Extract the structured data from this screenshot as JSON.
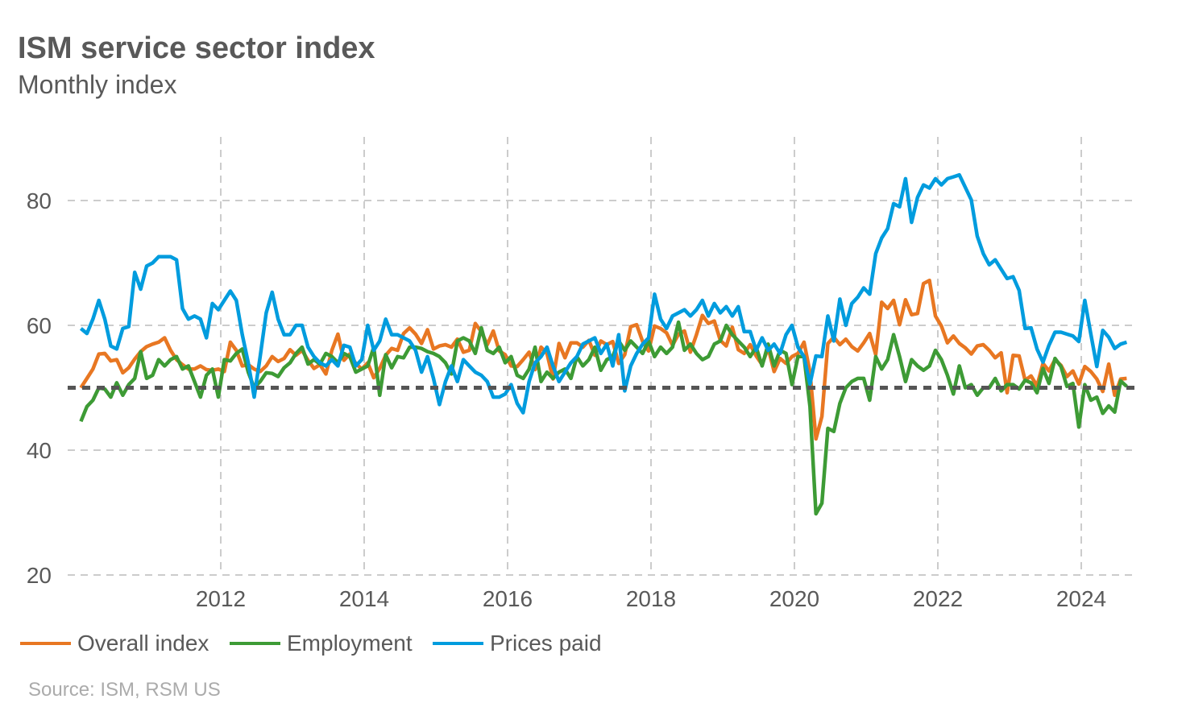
{
  "title": "ISM service sector index",
  "subtitle": "Monthly index",
  "source": "Source: ISM, RSM US",
  "chart_data": {
    "type": "line",
    "x_start": "2010-01",
    "frequency": "monthly",
    "xticks": [
      "2012",
      "2014",
      "2016",
      "2018",
      "2020",
      "2022",
      "2024"
    ],
    "yticks": [
      20,
      40,
      60,
      80
    ],
    "ylim": [
      20,
      90
    ],
    "grid": "dashed, both axes",
    "legend_placement": "bottom-left",
    "reference_line": {
      "value": 50,
      "color": "#555555",
      "style": "dotted"
    },
    "series": [
      {
        "name": "Overall index",
        "color": "#E87722",
        "values": [
          50,
          51.5,
          53,
          55.4,
          55.5,
          54.3,
          54.5,
          52.4,
          53.2,
          54.6,
          55.8,
          56.6,
          57,
          57.3,
          58,
          56,
          54.5,
          53.7,
          53,
          53,
          53.5,
          52.9,
          52.8,
          53,
          52.6,
          57.3,
          56,
          53.5,
          53.7,
          53,
          52.6,
          53.5,
          55,
          54.2,
          54.7,
          56.1,
          55.2,
          56,
          54.4,
          53.1,
          53.7,
          52.2,
          56,
          58.6,
          54.4,
          55.4,
          53.9,
          53,
          54,
          51.6,
          53.1,
          55.2,
          56.3,
          56,
          58.7,
          59.6,
          58.6,
          57.1,
          59.3,
          56.2,
          56.7,
          56.9,
          56.5,
          57.8,
          55.7,
          56,
          60.3,
          59,
          56.9,
          59.1,
          55.9,
          55.3,
          53.5,
          53.4,
          54.5,
          55.7,
          52.9,
          56.5,
          55.5,
          51.4,
          57.1,
          54.8,
          57.2,
          57.2,
          56.5,
          57.6,
          55.2,
          57.5,
          56.9,
          57.4,
          53.9,
          55.3,
          59.8,
          60.1,
          57.4,
          55.9,
          59.9,
          59.5,
          58.8,
          56.8,
          58.6,
          59.1,
          55.7,
          58.5,
          61.6,
          60.3,
          60.7,
          57.6,
          56.7,
          59.7,
          56.1,
          55.5,
          56.9,
          55.1,
          53.7,
          56.4,
          52.6,
          54.7,
          53.9,
          55,
          55.5,
          57.3,
          52.5,
          41.8,
          45.4,
          57.1,
          58.1,
          56.9,
          57.8,
          56.6,
          55.9,
          57.2,
          58.7,
          55.3,
          63.7,
          62.7,
          64,
          60.1,
          64.1,
          61.7,
          61.9,
          66.7,
          67.2,
          61.5,
          59.9,
          57.2,
          58.3,
          57.1,
          56.4,
          55.4,
          56.7,
          56.9,
          56,
          54.8,
          55.6,
          49.2,
          55.2,
          55.1,
          51.2,
          51.9,
          50.3,
          53.9,
          52.7,
          54.5,
          53.6,
          51.8,
          52.7,
          50.6,
          53.4,
          52.6,
          51.4,
          49.4,
          53.8,
          48.8,
          51.4,
          51.5
        ]
      },
      {
        "name": "Employment",
        "color": "#3D9B35",
        "values": [
          44.6,
          47,
          48,
          50,
          49.8,
          48.5,
          50.8,
          48.8,
          50.5,
          51.5,
          55.8,
          51.5,
          52,
          54.5,
          53.5,
          54.5,
          55,
          53,
          53.5,
          51,
          48.5,
          52,
          53,
          48.5,
          54.5,
          54.3,
          55.5,
          56.2,
          52.5,
          50,
          51,
          52.4,
          52.3,
          51.8,
          53.2,
          54,
          55.5,
          56.5,
          53.8,
          54.5,
          53.8,
          55.5,
          55,
          54,
          55.5,
          55,
          52.5,
          53,
          53.5,
          56.5,
          48.8,
          55.3,
          53.2,
          55,
          54.8,
          56.5,
          56.5,
          56.3,
          55.8,
          55.5,
          55,
          54,
          52.2,
          57.5,
          58,
          57.5,
          55.5,
          59.6,
          56,
          55.5,
          56.5,
          54,
          55,
          52,
          51.5,
          53,
          56.5,
          51,
          52.5,
          51.5,
          52.5,
          53,
          51.5,
          55,
          53.5,
          54.5,
          56.5,
          52.8,
          54.5,
          55,
          57.5,
          56,
          57.5,
          56.5,
          55.5,
          57.5,
          55,
          56.5,
          55.5,
          56.5,
          60.5,
          56,
          57,
          55.5,
          54.5,
          55,
          57,
          57.5,
          60,
          58.5,
          57.5,
          56.5,
          55,
          56.5,
          53.5,
          57,
          53.5,
          56,
          55.5,
          50.5,
          55,
          55,
          47,
          29.8,
          31.5,
          43.5,
          43,
          47.5,
          50,
          51,
          51.5,
          51.5,
          48,
          55,
          53,
          54.5,
          58.5,
          55,
          51,
          54.5,
          53.5,
          52.8,
          53.5,
          56,
          54.5,
          52,
          49,
          53.5,
          50,
          50.5,
          48.8,
          50,
          50,
          51.5,
          49.5,
          50.5,
          50.5,
          49.8,
          51.2,
          50.8,
          49.2,
          53.1,
          50.7,
          54.7,
          53.4,
          50.2,
          50.7,
          43.7,
          50.5,
          48,
          48.5,
          45.9,
          47.1,
          46.1,
          51.1,
          50.2
        ]
      },
      {
        "name": "Prices paid",
        "color": "#009CDE",
        "values": [
          59.5,
          58.7,
          61,
          64,
          61,
          56.7,
          56.2,
          59.5,
          59.8,
          68.5,
          65.8,
          69.5,
          70,
          71,
          71,
          71,
          70.5,
          62.7,
          61,
          61.5,
          61,
          58,
          63.5,
          62.5,
          64,
          65.5,
          64,
          58.5,
          54,
          48.5,
          55,
          62,
          65.3,
          61,
          58.5,
          58.5,
          60,
          60,
          56.5,
          55,
          54,
          53.5,
          54.5,
          53.5,
          56.8,
          56.5,
          53.5,
          54.5,
          60,
          56,
          57.5,
          61,
          58.5,
          58.5,
          58,
          57.5,
          56,
          52.5,
          55,
          51.5,
          47.3,
          51,
          53.5,
          51,
          54.5,
          53.5,
          52.5,
          52,
          51,
          48.5,
          48.5,
          49,
          50.5,
          47.5,
          46,
          51,
          54,
          55,
          56.5,
          53.5,
          51,
          52.5,
          54,
          55,
          57,
          57.5,
          58,
          55.5,
          57,
          53.5,
          58.5,
          49.5,
          53.5,
          55.5,
          57,
          58,
          65,
          61,
          59.5,
          61.5,
          62,
          62.5,
          61.5,
          62.5,
          64,
          61.5,
          63.5,
          62,
          63,
          61.5,
          63,
          59,
          59,
          56,
          58,
          56,
          57,
          55.5,
          58.5,
          60,
          56.5,
          55,
          50.6,
          55.1,
          55,
          61.5,
          57.5,
          64.2,
          60,
          63.5,
          64.5,
          66,
          65,
          71.5,
          74,
          75.5,
          79.5,
          79,
          83.5,
          76.5,
          80.5,
          82.5,
          82,
          83.5,
          82.5,
          83.5,
          83.8,
          84.1,
          82.1,
          80.1,
          74.3,
          71.5,
          69.7,
          70.5,
          69,
          67.5,
          67.8,
          65.6,
          59.5,
          59.6,
          56.2,
          54.1,
          56.8,
          58.9,
          58.9,
          58.6,
          58.3,
          57.4,
          64,
          58.6,
          53.4,
          59.2,
          58.1,
          56.3,
          57,
          57.3
        ]
      }
    ]
  }
}
